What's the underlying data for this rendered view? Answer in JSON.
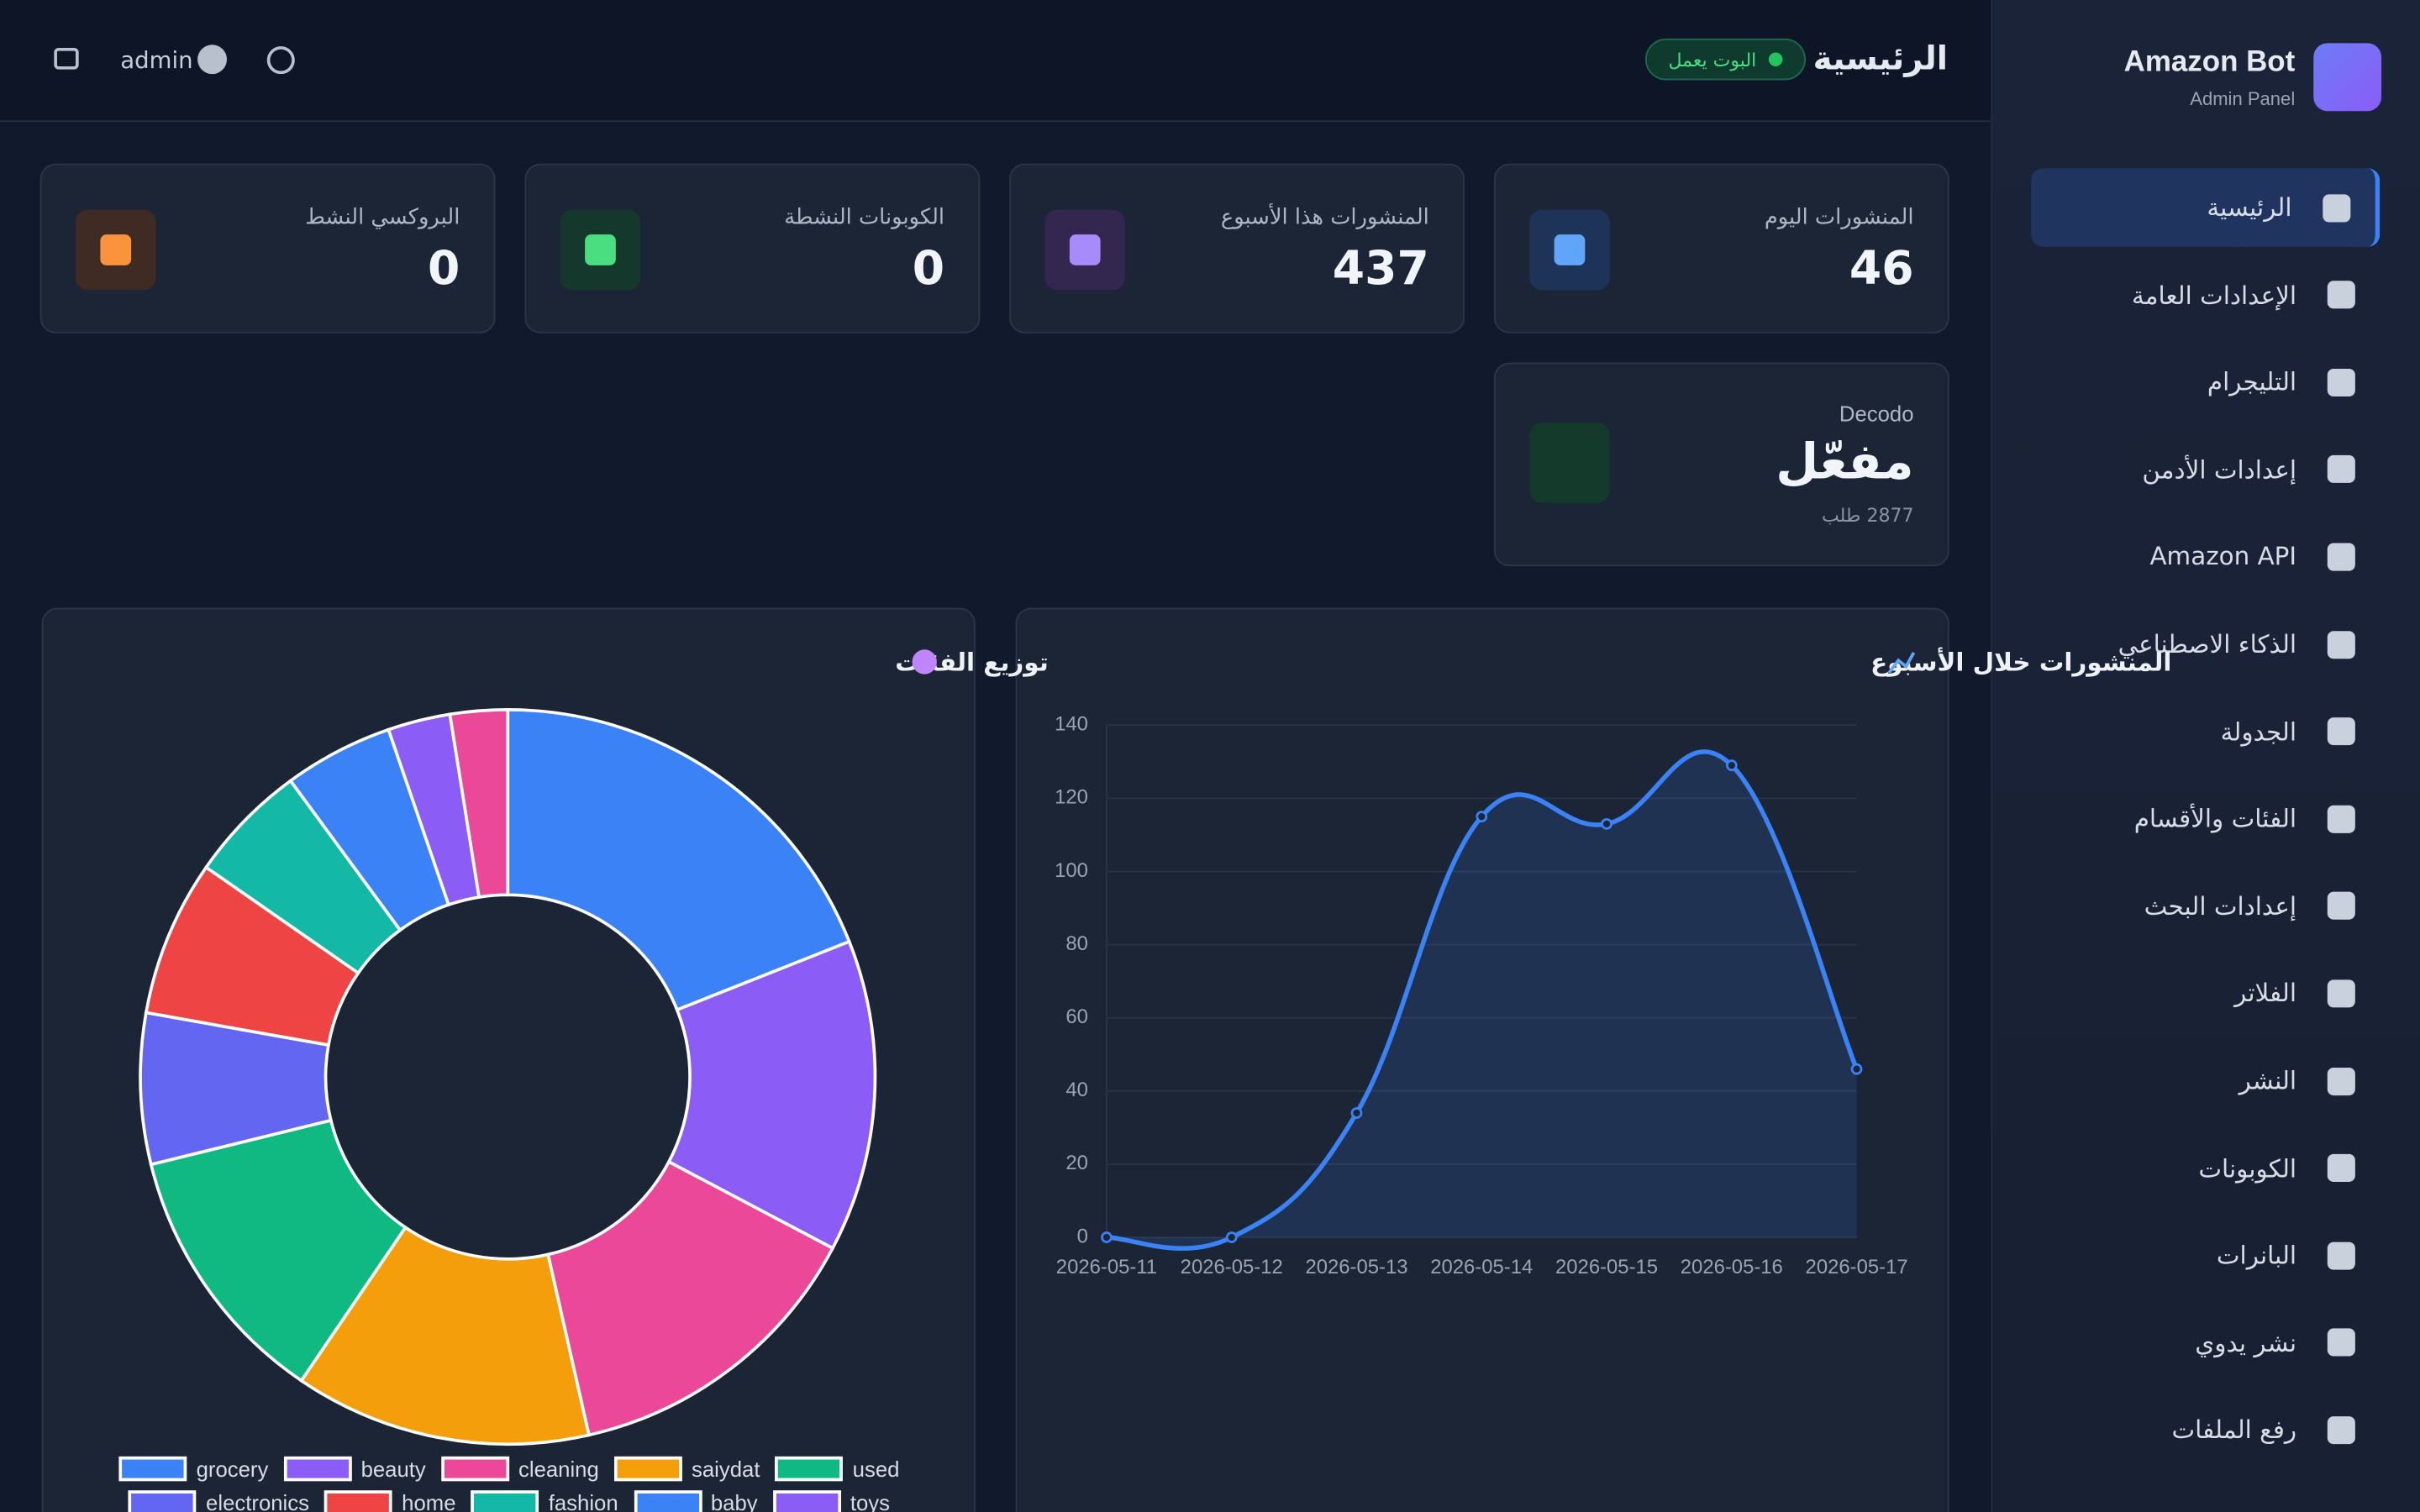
{
  "sidebar": {
    "brand": "Amazon Bot",
    "subtitle": "Admin Panel",
    "items": [
      "الرئيسية",
      "الإعدادات العامة",
      "التليجرام",
      "إعدادات الأدمن",
      "Amazon API",
      "الذكاء الاصطناعي",
      "الجدولة",
      "الفئات والأقسام",
      "إعدادات البحث",
      "الفلاتر",
      "النشر",
      "الكوبونات",
      "البانرات",
      "نشر يدوي",
      "رفع الملفات"
    ]
  },
  "header": {
    "title": "الرئيسية",
    "status": "البوت يعمل",
    "user": "admin"
  },
  "stats": [
    {
      "label": "المنشورات اليوم",
      "value": 46
    },
    {
      "label": "المنشورات هذا الأسبوع",
      "value": 437
    },
    {
      "label": "الكوبونات النشطة",
      "value": 0
    },
    {
      "label": "البروكسي النشط",
      "value": 0
    }
  ],
  "decodo": {
    "label": "Decodo",
    "value": "مفعّل",
    "note": "2877 طلب"
  },
  "chart_data": [
    {
      "type": "line",
      "title": "المنشورات خلال الأسبوع",
      "x": [
        "2026-05-11",
        "2026-05-12",
        "2026-05-13",
        "2026-05-14",
        "2026-05-15",
        "2026-05-16",
        "2026-05-17"
      ],
      "values": [
        0,
        0,
        34,
        115,
        113,
        129,
        46
      ],
      "color": "#3b82f6",
      "ylim": [
        0,
        140
      ],
      "yticks": [
        0,
        20,
        40,
        60,
        80,
        100,
        120,
        140
      ],
      "grid": true
    },
    {
      "type": "pie",
      "title": "توزيع الفئات",
      "categories": [
        "grocery",
        "beauty",
        "cleaning",
        "saiydat",
        "used",
        "electronics",
        "home",
        "fashion",
        "baby",
        "toys",
        null
      ],
      "values": [
        83,
        60,
        60,
        57,
        51,
        29,
        30,
        23,
        21,
        12,
        11
      ],
      "colors": [
        "#3b82f6",
        "#8b5cf6",
        "#ec4899",
        "#f59e0b",
        "#10b981",
        "#6366f1",
        "#ef4444",
        "#14b8a6",
        "#3b82f6",
        "#8b5cf6",
        "#ec4899"
      ],
      "legend": "bottom"
    }
  ]
}
